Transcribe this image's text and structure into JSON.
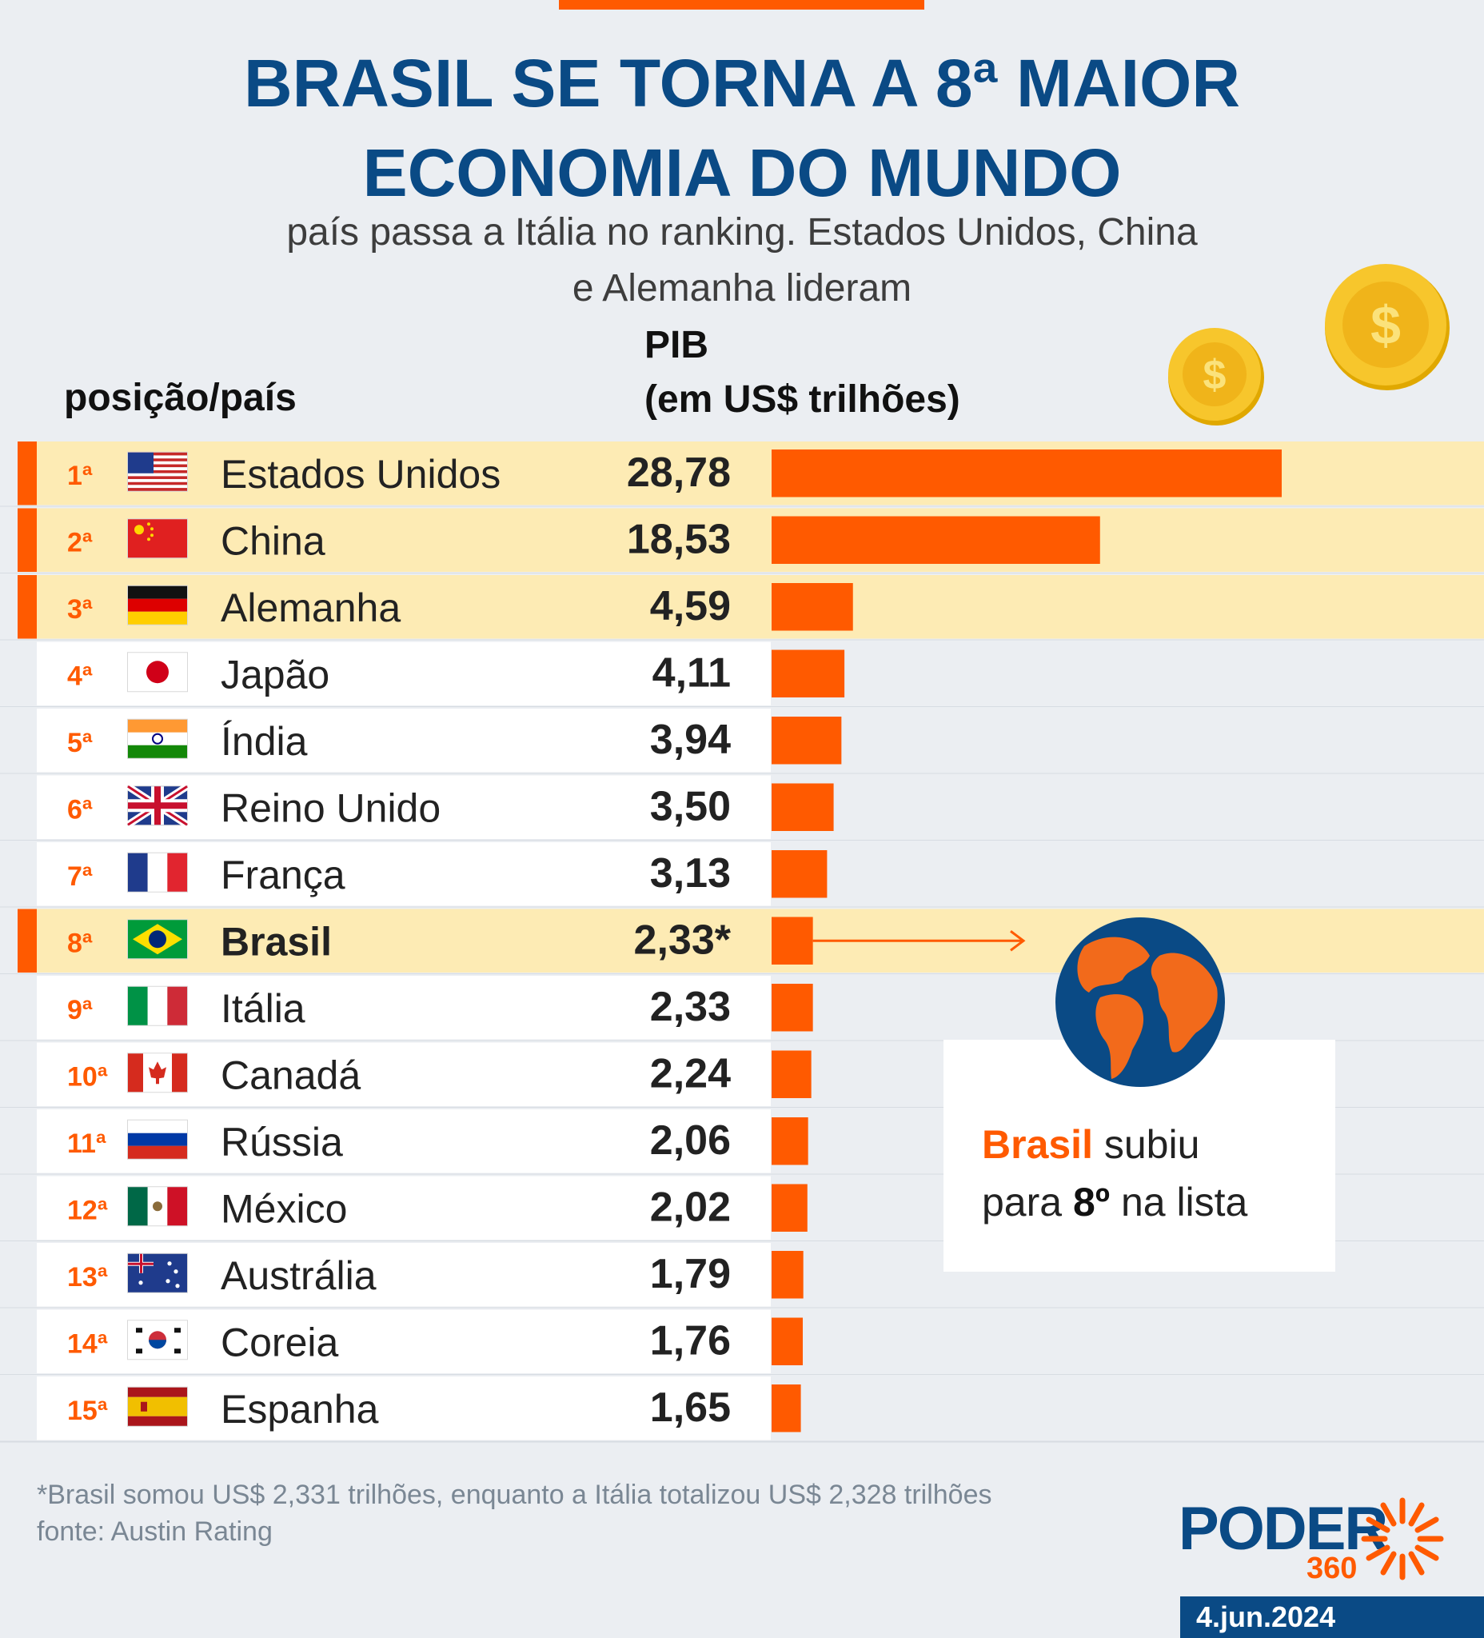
{
  "title": "BRASIL SE TORNA A 8ª MAIOR ECONOMIA DO MUNDO",
  "subtitle_line1": "país passa a Itália no ranking. Estados Unidos, China",
  "subtitle_line2": "e Alemanha lideram",
  "column_position_label": "posição/país",
  "column_value_label_line1": "PIB",
  "column_value_label_line2": "(em US$ trilhões)",
  "colors": {
    "accent": "#ff5a00",
    "highlight_row": "#fdebb4",
    "title_blue": "#0a4a85",
    "background": "#ebeef2"
  },
  "coin_symbol": "$",
  "chart_data": {
    "type": "bar",
    "orientation": "horizontal",
    "categories": [
      "Estados Unidos",
      "China",
      "Alemanha",
      "Japão",
      "Índia",
      "Reino Unido",
      "França",
      "Brasil",
      "Itália",
      "Canadá",
      "Rússia",
      "México",
      "Austrália",
      "Coreia",
      "Espanha"
    ],
    "positions": [
      "1ª",
      "2ª",
      "3ª",
      "4ª",
      "5ª",
      "6ª",
      "7ª",
      "8ª",
      "9ª",
      "10ª",
      "11ª",
      "12ª",
      "13ª",
      "14ª",
      "15ª"
    ],
    "values": [
      28.78,
      18.53,
      4.59,
      4.11,
      3.94,
      3.5,
      3.13,
      2.33,
      2.33,
      2.24,
      2.06,
      2.02,
      1.79,
      1.76,
      1.65
    ],
    "value_labels": [
      "28,78",
      "18,53",
      "4,59",
      "4,11",
      "3,94",
      "3,50",
      "3,13",
      "2,33*",
      "2,33",
      "2,24",
      "2,06",
      "2,02",
      "1,79",
      "1,76",
      "1,65"
    ],
    "flags": [
      "us-flag",
      "cn-flag",
      "de-flag",
      "jp-flag",
      "in-flag",
      "gb-flag",
      "fr-flag",
      "br-flag",
      "it-flag",
      "ca-flag",
      "ru-flag",
      "mx-flag",
      "au-flag",
      "kr-flag",
      "es-flag"
    ],
    "highlighted": [
      true,
      true,
      true,
      false,
      false,
      false,
      false,
      true,
      false,
      false,
      false,
      false,
      false,
      false,
      false
    ],
    "bold_names": [
      false,
      false,
      false,
      false,
      false,
      false,
      false,
      true,
      false,
      false,
      false,
      false,
      false,
      false,
      false
    ],
    "xlim": [
      0,
      28.78
    ],
    "bar_color": "#ff5a00"
  },
  "callout": {
    "highlight": "Brasil",
    "line1_rest": " subiu",
    "line2_pre": "para ",
    "line2_bold": "8º",
    "line2_post": " na lista"
  },
  "footnote_line1": "*Brasil somou US$ 2,331 trilhões, enquanto a Itália totalizou US$ 2,328 trilhões",
  "footnote_line2": "fonte: Austin Rating",
  "brand": {
    "name": "PODER",
    "number": "360"
  },
  "date": "4.jun.2024"
}
